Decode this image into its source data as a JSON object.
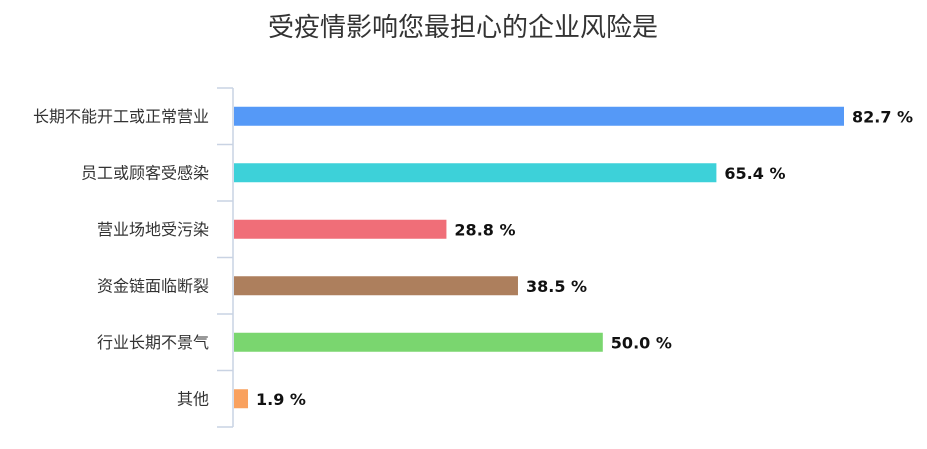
{
  "chart_data": {
    "type": "bar",
    "orientation": "horizontal",
    "title": "受疫情影响您最担心的企业风险是",
    "categories": [
      "长期不能开工或正常营业",
      "员工或顾客受感染",
      "营业场地受污染",
      "资金链面临断裂",
      "行业长期不景气",
      "其他"
    ],
    "values": [
      82.7,
      65.4,
      28.8,
      38.5,
      50.0,
      1.9
    ],
    "value_labels": [
      "82.7 %",
      "65.4 %",
      "28.8 %",
      "38.5 %",
      "50.0 %",
      "1.9 %"
    ],
    "colors": [
      "#5599f7",
      "#3dd1d9",
      "#f06e78",
      "#ad7f5d",
      "#7ad66f",
      "#f9a15e"
    ],
    "xlim": [
      0,
      100
    ],
    "grid": false,
    "legend": "none"
  }
}
